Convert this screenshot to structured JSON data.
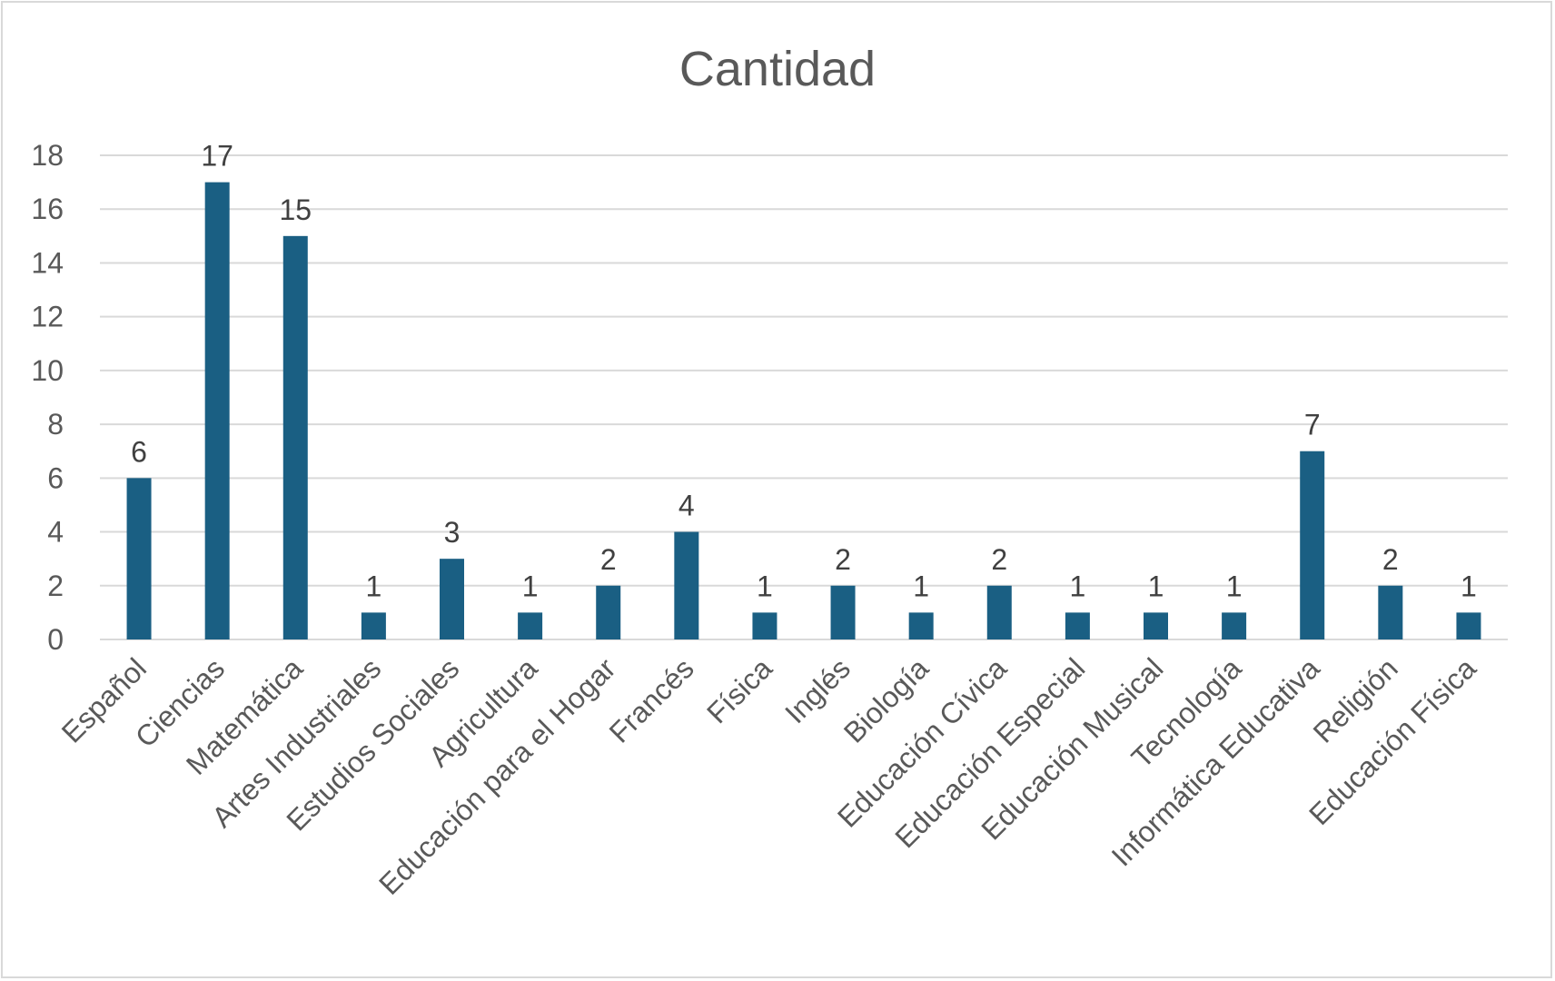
{
  "chart_data": {
    "type": "bar",
    "title": "Cantidad",
    "xlabel": "",
    "ylabel": "",
    "ylim": [
      0,
      18
    ],
    "yticks": [
      0,
      2,
      4,
      6,
      8,
      10,
      12,
      14,
      16,
      18
    ],
    "grid": true,
    "legend": "none",
    "bar_color": "#1a5f83",
    "categories": [
      "Español",
      "Ciencias",
      "Matemática",
      "Artes Industriales",
      "Estudios Sociales",
      "Agricultura",
      "Educación para el Hogar",
      "Francés",
      "Física",
      "Inglés",
      "Biología",
      "Educación Cívica",
      "Educación Especial",
      "Educación Musical",
      "Tecnología",
      "Informática Educativa",
      "Religión",
      "Educación Física"
    ],
    "values": [
      6,
      17,
      15,
      1,
      3,
      1,
      2,
      4,
      1,
      2,
      1,
      2,
      1,
      1,
      1,
      7,
      2,
      1
    ]
  }
}
